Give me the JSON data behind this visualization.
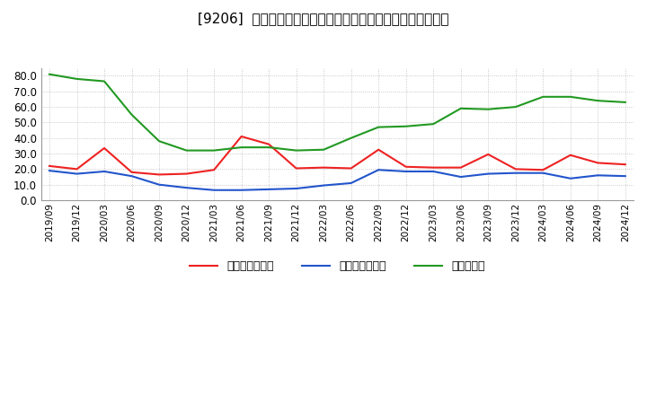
{
  "title": "[9206]  売上債権回転率、買入債務回転率、在庫回転率の推移",
  "x_labels": [
    "2019/09",
    "2019/12",
    "2020/03",
    "2020/06",
    "2020/09",
    "2020/12",
    "2021/03",
    "2021/06",
    "2021/09",
    "2021/12",
    "2022/03",
    "2022/06",
    "2022/09",
    "2022/12",
    "2023/03",
    "2023/06",
    "2023/09",
    "2023/12",
    "2024/03",
    "2024/06",
    "2024/09",
    "2024/12"
  ],
  "receivables_turnover": [
    22.0,
    20.0,
    33.5,
    18.0,
    16.5,
    17.0,
    19.5,
    41.0,
    36.0,
    20.5,
    21.0,
    20.5,
    32.5,
    21.5,
    21.0,
    21.0,
    29.5,
    20.0,
    19.5,
    29.0,
    24.0,
    23.0
  ],
  "payables_turnover": [
    19.0,
    17.0,
    18.5,
    15.5,
    10.0,
    8.0,
    6.5,
    6.5,
    7.0,
    7.5,
    9.5,
    11.0,
    19.5,
    18.5,
    18.5,
    15.0,
    17.0,
    17.5,
    17.5,
    14.0,
    16.0,
    15.5
  ],
  "inventory_turnover": [
    81.0,
    78.0,
    76.5,
    55.0,
    38.0,
    32.0,
    32.0,
    34.0,
    34.0,
    32.0,
    32.5,
    40.0,
    47.0,
    47.5,
    49.0,
    59.0,
    58.5,
    60.0,
    66.5,
    66.5,
    64.0,
    63.0
  ],
  "line_colors": {
    "receivables": "#ee2222",
    "payables": "#2255cc",
    "inventory": "#229922"
  },
  "legend_labels": [
    "売上債権回転率",
    "買入債務回転率",
    "在庫回転率"
  ],
  "ylim": [
    0.0,
    85.0
  ],
  "yticks": [
    0.0,
    10.0,
    20.0,
    30.0,
    40.0,
    50.0,
    60.0,
    70.0,
    80.0
  ],
  "background_color": "#ffffff",
  "grid_color": "#bbbbbb",
  "title_fontsize": 11
}
